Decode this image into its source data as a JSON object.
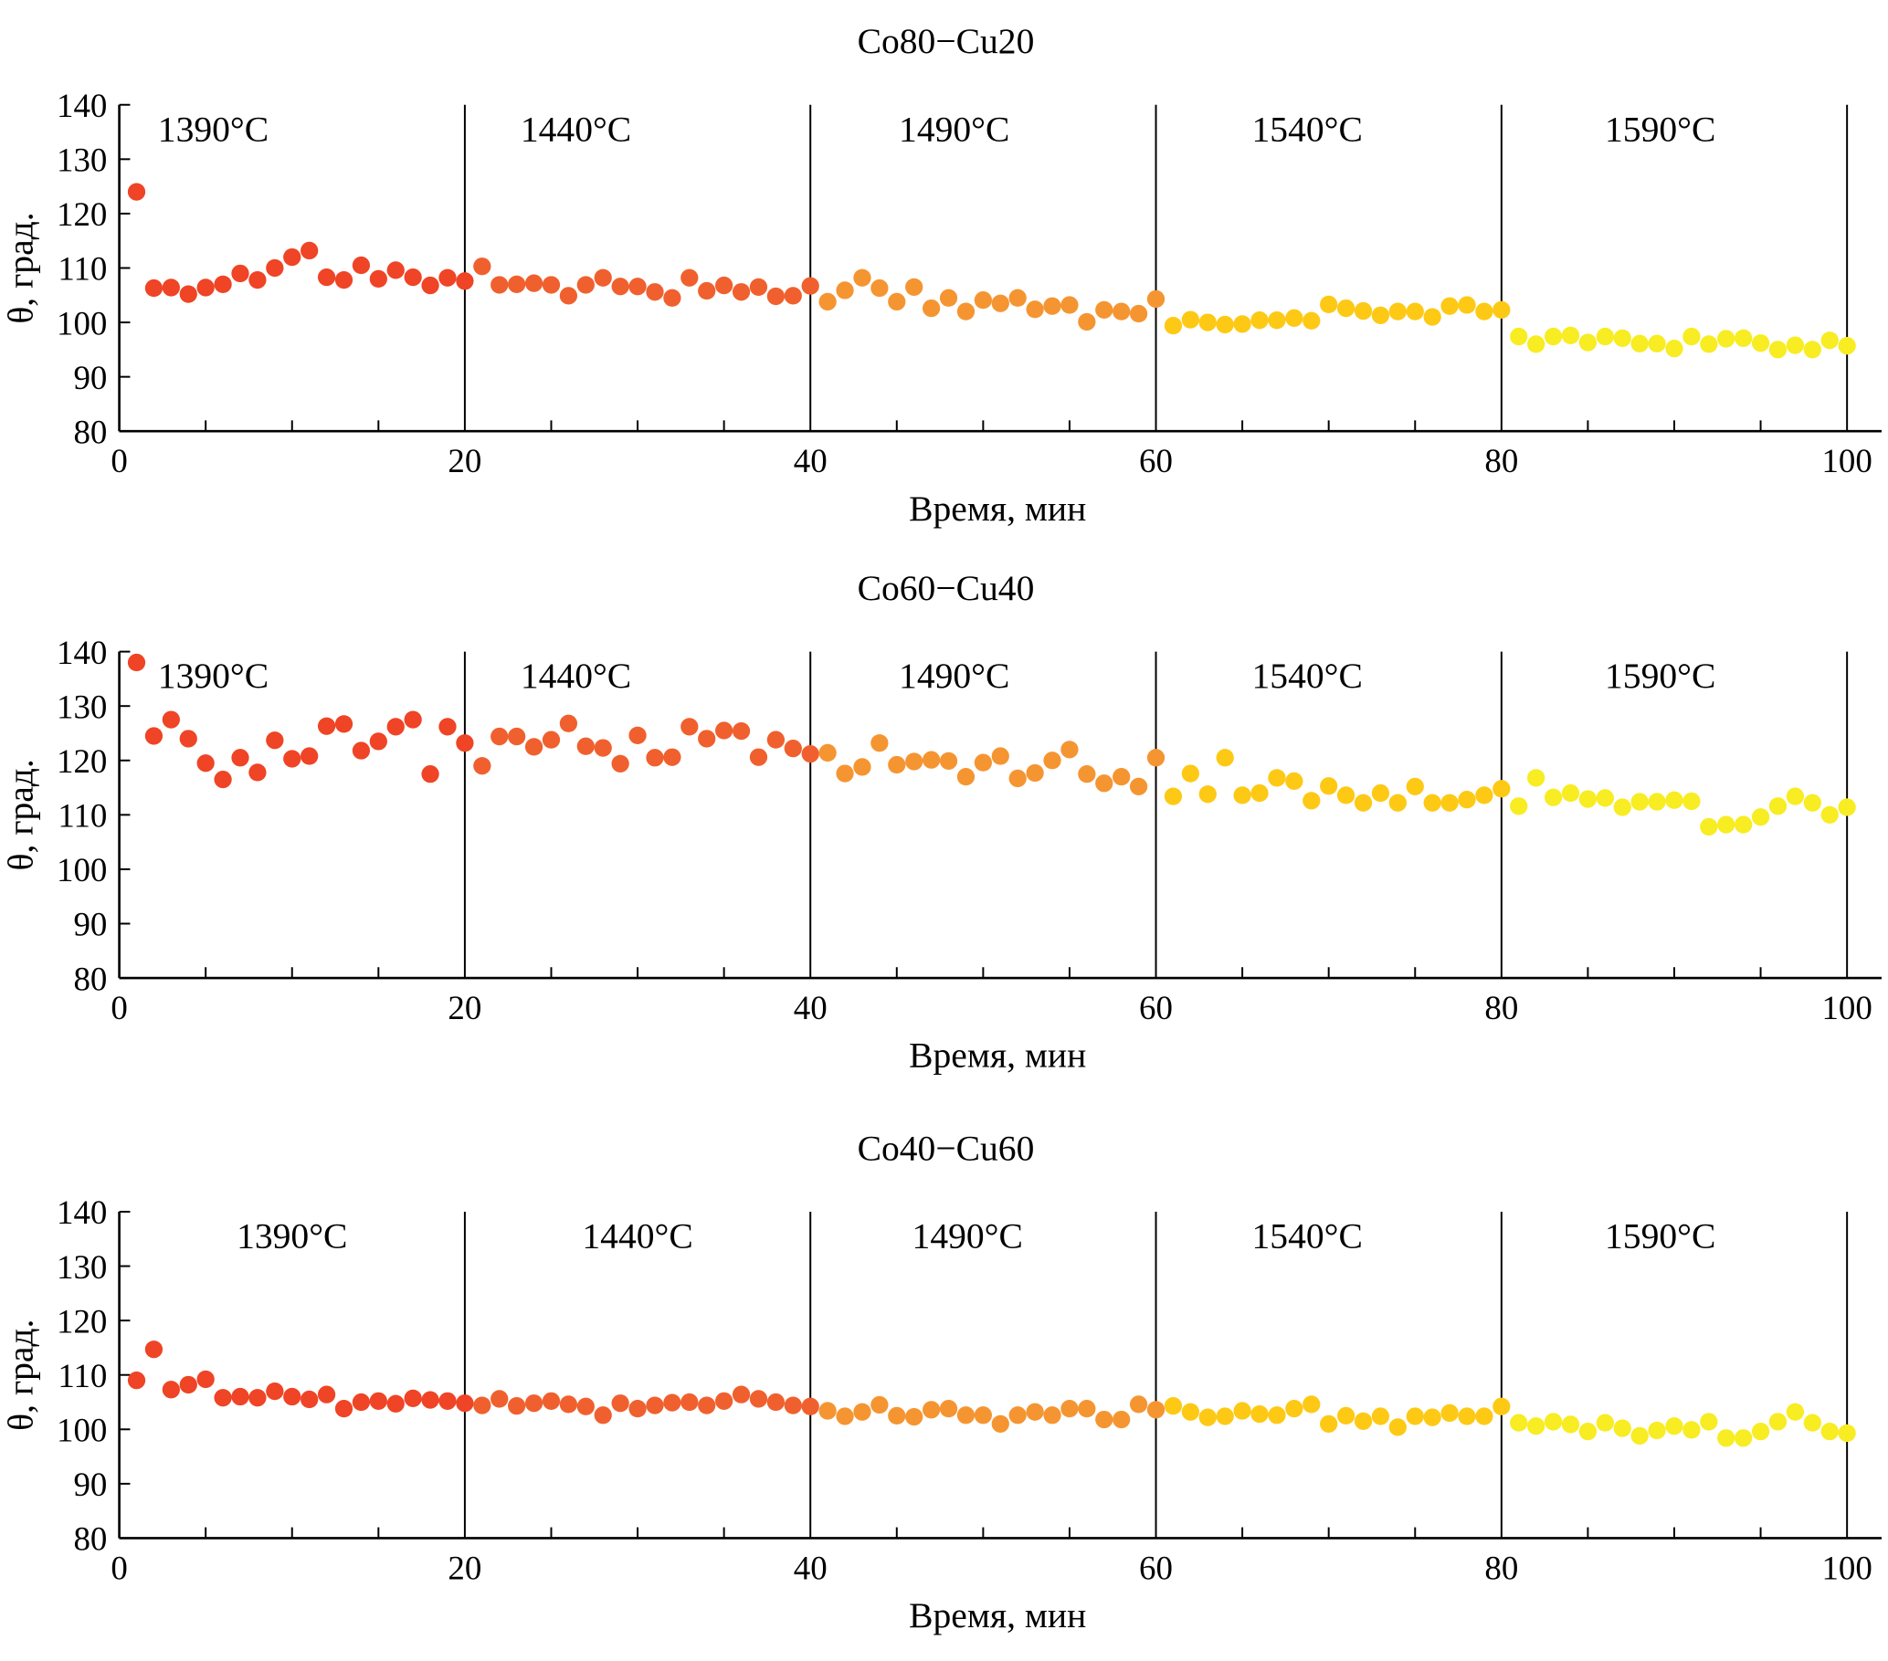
{
  "chart_data": [
    {
      "type": "scatter",
      "title": "Co80−Cu20",
      "xlabel": "Время, мин",
      "ylabel": "θ, град.",
      "xlim": [
        0,
        102
      ],
      "ylim": [
        80,
        140
      ],
      "xticks": [
        0,
        20,
        40,
        60,
        80,
        100
      ],
      "yticks": [
        80,
        90,
        100,
        110,
        120,
        130,
        140
      ],
      "grid": false,
      "segments": [
        {
          "label": "1390°C",
          "range": [
            0,
            20
          ],
          "color": "#ef4426"
        },
        {
          "label": "1440°C",
          "range": [
            20,
            40
          ],
          "color": "#f0602e"
        },
        {
          "label": "1490°C",
          "range": [
            40,
            60
          ],
          "color": "#f59532"
        },
        {
          "label": "1540°C",
          "range": [
            60,
            80
          ],
          "color": "#fdc915"
        },
        {
          "label": "1590°C",
          "range": [
            80,
            100
          ],
          "color": "#f8ec23"
        }
      ],
      "y": [
        124,
        106.3,
        106.4,
        105.2,
        106.4,
        107,
        109,
        107.8,
        110,
        112,
        113.2,
        108.3,
        107.8,
        110.5,
        108,
        109.6,
        108.3,
        106.8,
        108.2,
        107.6,
        110.3,
        106.9,
        107,
        107.2,
        106.9,
        104.9,
        106.9,
        108.2,
        106.6,
        106.6,
        105.6,
        104.5,
        108.2,
        105.8,
        106.8,
        105.6,
        106.5,
        104.8,
        104.9,
        106.7,
        103.8,
        105.9,
        108.2,
        106.3,
        103.8,
        106.5,
        102.6,
        104.5,
        102,
        104.1,
        103.5,
        104.5,
        102.4,
        103,
        103.2,
        100.1,
        102.3,
        102,
        101.6,
        104.3,
        99.4,
        100.5,
        100,
        99.6,
        99.7,
        100.4,
        100.4,
        100.8,
        100.3,
        103.3,
        102.6,
        102.1,
        101.3,
        102,
        102,
        101,
        103,
        103.2,
        102,
        102.3,
        97.4,
        96,
        97.4,
        97.6,
        96.3,
        97.4,
        97.1,
        96.1,
        96.1,
        95.2,
        97.4,
        96,
        97,
        97.1,
        96.2,
        95,
        95.8,
        95,
        96.7,
        95.7
      ]
    },
    {
      "type": "scatter",
      "title": "Co60−Cu40",
      "xlabel": "Время, мин",
      "ylabel": "θ, град.",
      "xlim": [
        0,
        102
      ],
      "ylim": [
        80,
        140
      ],
      "xticks": [
        0,
        20,
        40,
        60,
        80,
        100
      ],
      "yticks": [
        80,
        90,
        100,
        110,
        120,
        130,
        140
      ],
      "grid": false,
      "segments": [
        {
          "label": "1390°C",
          "range": [
            0,
            20
          ],
          "color": "#ef4426"
        },
        {
          "label": "1440°C",
          "range": [
            20,
            40
          ],
          "color": "#f0602e"
        },
        {
          "label": "1490°C",
          "range": [
            40,
            60
          ],
          "color": "#f59532"
        },
        {
          "label": "1540°C",
          "range": [
            60,
            80
          ],
          "color": "#fdc915"
        },
        {
          "label": "1590°C",
          "range": [
            80,
            100
          ],
          "color": "#f8ec23"
        }
      ],
      "y": [
        138,
        124.5,
        127.5,
        124,
        119.5,
        116.5,
        120.5,
        117.8,
        123.7,
        120.3,
        120.8,
        126.3,
        126.7,
        121.8,
        123.5,
        126.2,
        127.5,
        117.5,
        126.2,
        123.2,
        119,
        124.4,
        124.4,
        122.5,
        123.8,
        126.8,
        122.6,
        122.3,
        119.4,
        124.6,
        120.5,
        120.6,
        126.2,
        124,
        125.5,
        125.4,
        120.6,
        123.8,
        122.2,
        121.2,
        121.4,
        117.6,
        118.8,
        123.2,
        119.2,
        119.8,
        120.1,
        119.9,
        117,
        119.6,
        120.8,
        116.7,
        117.7,
        120,
        122,
        117.5,
        115.8,
        117,
        115.2,
        120.5,
        113.4,
        117.6,
        113.8,
        120.5,
        113.6,
        114,
        116.8,
        116.2,
        112.6,
        115.3,
        113.6,
        112.2,
        114,
        112.2,
        115.2,
        112.2,
        112.2,
        112.8,
        113.6,
        114.8,
        111.6,
        116.8,
        113.2,
        114,
        112.9,
        113.1,
        111.4,
        112.4,
        112.4,
        112.7,
        112.5,
        107.8,
        108.2,
        108.2,
        109.6,
        111.6,
        113.4,
        112.2,
        110,
        111.4
      ]
    },
    {
      "type": "scatter",
      "title": "Co40−Cu60",
      "xlabel": "Время, мин",
      "ylabel": "θ, град.",
      "xlim": [
        0,
        102
      ],
      "ylim": [
        80,
        140
      ],
      "xticks": [
        0,
        20,
        40,
        60,
        80,
        100
      ],
      "yticks": [
        80,
        90,
        100,
        110,
        120,
        130,
        140
      ],
      "grid": false,
      "segments": [
        {
          "label": "1390°C",
          "range": [
            0,
            20
          ],
          "color": "#ef4426"
        },
        {
          "label": "1440°C",
          "range": [
            20,
            40
          ],
          "color": "#f0602e"
        },
        {
          "label": "1490°C",
          "range": [
            40,
            60
          ],
          "color": "#f59532"
        },
        {
          "label": "1540°C",
          "range": [
            60,
            80
          ],
          "color": "#fdc915"
        },
        {
          "label": "1590°C",
          "range": [
            80,
            100
          ],
          "color": "#f8ec23"
        }
      ],
      "y": [
        109,
        114.7,
        107.3,
        108.2,
        109.2,
        105.8,
        106,
        105.8,
        107,
        106,
        105.5,
        106.4,
        103.8,
        105,
        105.2,
        104.7,
        105.7,
        105.4,
        105.2,
        104.8,
        104.4,
        105.6,
        104.3,
        104.8,
        105.2,
        104.6,
        104.2,
        102.6,
        104.8,
        103.8,
        104.4,
        104.9,
        105,
        104.4,
        105.2,
        106.4,
        105.6,
        105,
        104.4,
        104.2,
        103.4,
        102.4,
        103.2,
        104.5,
        102.5,
        102.3,
        103.6,
        103.8,
        102.6,
        102.6,
        101,
        102.6,
        103.2,
        102.6,
        103.8,
        103.8,
        101.8,
        101.8,
        104.6,
        103.6,
        104.3,
        103.2,
        102.2,
        102.4,
        103.4,
        102.8,
        102.6,
        103.8,
        104.6,
        101,
        102.5,
        101.5,
        102.4,
        100.4,
        102.4,
        102.2,
        103,
        102.4,
        102.4,
        104.2,
        101.2,
        100.6,
        101.4,
        100.9,
        99.6,
        101.2,
        100.2,
        98.8,
        99.8,
        100.6,
        99.9,
        101.4,
        98.4,
        98.4,
        99.6,
        101.4,
        103.2,
        101.2,
        99.6,
        99.3
      ]
    }
  ]
}
